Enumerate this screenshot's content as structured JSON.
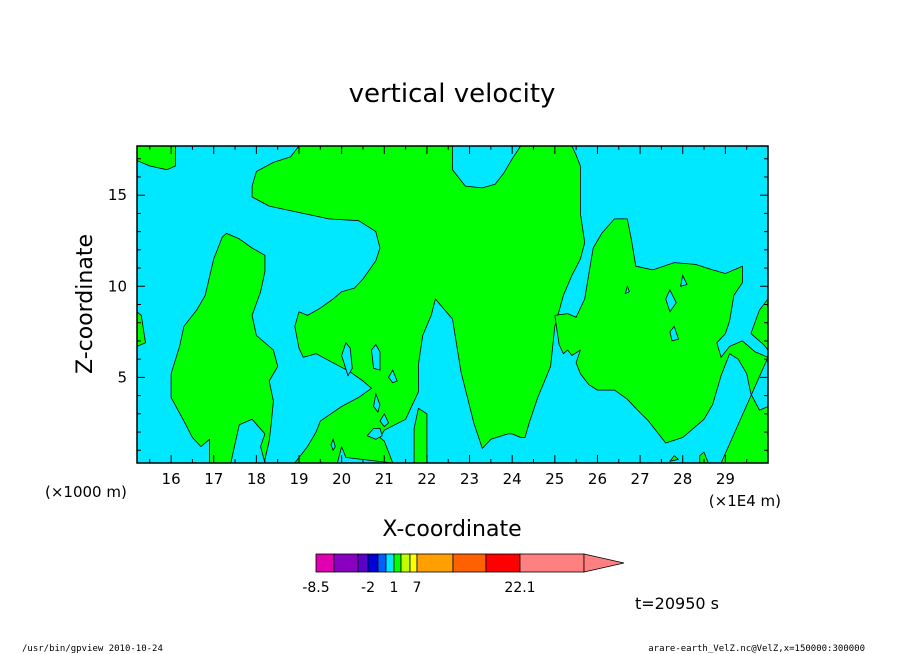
{
  "chart_data": {
    "type": "heatmap",
    "title": "vertical velocity",
    "xlabel": "X-coordinate",
    "ylabel": "Z-coordinate",
    "x_unit": "(×1E4 m)",
    "y_unit": "(×1000 m)",
    "xlim": [
      15.2,
      30.0
    ],
    "ylim": [
      0.3,
      17.7
    ],
    "x_ticks": [
      "16",
      "17",
      "18",
      "19",
      "20",
      "21",
      "22",
      "23",
      "24",
      "25",
      "26",
      "27",
      "28",
      "29"
    ],
    "y_ticks": [
      "5",
      "10",
      "15"
    ],
    "grid": false,
    "levels": [
      {
        "label": "-8.5",
        "color": "#e000b0"
      },
      {
        "label": "",
        "color": "#8a00c0"
      },
      {
        "label": "",
        "color": "#5a00c8"
      },
      {
        "label": "-2",
        "color": "#0000d8"
      },
      {
        "label": "",
        "color": "#0060ff"
      },
      {
        "label": "",
        "color": "#00e8ff"
      },
      {
        "label": "1",
        "color": "#00ff00"
      },
      {
        "label": "",
        "color": "#c0ff00"
      },
      {
        "label": "",
        "color": "#ffff00"
      },
      {
        "label": "7",
        "color": "#ffa000"
      },
      {
        "label": "",
        "color": "#ff6000"
      },
      {
        "label": "",
        "color": "#ff0000"
      },
      {
        "label": "22.1",
        "color": "#ff8080"
      }
    ],
    "field_colors": {
      "background": "#00e8ff",
      "updraft": "#00ff00"
    },
    "updraft_regions": [
      [
        [
          15.2,
          6.7
        ],
        [
          15.4,
          6.9
        ],
        [
          15.3,
          8.4
        ],
        [
          15.2,
          8.6
        ]
      ],
      [
        [
          15.2,
          17.7
        ],
        [
          16.1,
          17.7
        ],
        [
          16.1,
          16.6
        ],
        [
          15.9,
          16.4
        ],
        [
          15.5,
          16.6
        ],
        [
          15.2,
          16.9
        ]
      ],
      [
        [
          16.9,
          0.3
        ],
        [
          17.4,
          0.3
        ],
        [
          17.6,
          2.4
        ],
        [
          17.9,
          2.7
        ],
        [
          18.2,
          1.9
        ],
        [
          18.1,
          1.2
        ],
        [
          18.2,
          0.3
        ],
        [
          18.2,
          0.5
        ],
        [
          18.3,
          1.5
        ],
        [
          18.35,
          2.5
        ],
        [
          18.4,
          3.7
        ],
        [
          18.3,
          4.8
        ],
        [
          18.5,
          5.6
        ],
        [
          18.4,
          6.5
        ],
        [
          18.0,
          7.3
        ],
        [
          17.9,
          8.4
        ],
        [
          18.1,
          9.7
        ],
        [
          18.2,
          10.8
        ],
        [
          18.2,
          11.7
        ],
        [
          17.9,
          12.1
        ],
        [
          17.6,
          12.6
        ],
        [
          17.3,
          12.9
        ],
        [
          17.2,
          12.7
        ],
        [
          17.0,
          11.5
        ],
        [
          16.8,
          9.5
        ],
        [
          16.6,
          8.7
        ],
        [
          16.3,
          7.8
        ],
        [
          16.2,
          6.7
        ],
        [
          16.0,
          5.2
        ],
        [
          16.0,
          3.9
        ],
        [
          16.3,
          2.6
        ],
        [
          16.5,
          1.7
        ],
        [
          16.7,
          1.2
        ],
        [
          16.9,
          1.6
        ]
      ],
      [
        [
          18.9,
          0.3
        ],
        [
          19.9,
          0.3
        ],
        [
          20.0,
          1.2
        ],
        [
          20.1,
          0.6
        ],
        [
          21.2,
          0.3
        ],
        [
          21.0,
          1.5
        ],
        [
          20.9,
          1.7
        ],
        [
          21.0,
          2.1
        ],
        [
          21.5,
          2.7
        ],
        [
          21.8,
          4.2
        ],
        [
          21.8,
          5.7
        ],
        [
          21.9,
          7.3
        ],
        [
          22.1,
          8.4
        ],
        [
          22.2,
          9.3
        ],
        [
          22.6,
          8.2
        ],
        [
          22.8,
          5.3
        ],
        [
          23.1,
          2.5
        ],
        [
          23.3,
          1.1
        ],
        [
          23.5,
          1.6
        ],
        [
          23.9,
          1.9
        ],
        [
          24.0,
          1.9
        ],
        [
          24.2,
          1.7
        ],
        [
          24.3,
          1.7
        ],
        [
          24.4,
          2.5
        ],
        [
          24.6,
          3.9
        ],
        [
          24.9,
          5.6
        ],
        [
          25.0,
          7.8
        ],
        [
          25.2,
          9.5
        ],
        [
          25.4,
          10.6
        ],
        [
          25.6,
          11.5
        ],
        [
          25.7,
          12.4
        ],
        [
          25.6,
          14.0
        ],
        [
          25.6,
          16.6
        ],
        [
          25.5,
          17.2
        ],
        [
          25.4,
          17.7
        ],
        [
          24.2,
          17.7
        ],
        [
          24.0,
          17.0
        ],
        [
          23.8,
          16.2
        ],
        [
          23.6,
          15.6
        ],
        [
          23.3,
          15.4
        ],
        [
          22.9,
          15.5
        ],
        [
          22.6,
          16.4
        ],
        [
          22.6,
          17.3
        ],
        [
          22.6,
          17.7
        ],
        [
          19.0,
          17.7
        ],
        [
          18.8,
          17.1
        ],
        [
          18.4,
          16.8
        ],
        [
          18.0,
          16.3
        ],
        [
          17.9,
          15.5
        ],
        [
          17.9,
          14.9
        ],
        [
          18.3,
          14.4
        ],
        [
          18.9,
          14.1
        ],
        [
          19.7,
          13.7
        ],
        [
          20.4,
          13.6
        ],
        [
          20.8,
          13.0
        ],
        [
          20.9,
          12.1
        ],
        [
          20.8,
          11.4
        ],
        [
          20.5,
          10.4
        ],
        [
          20.3,
          9.9
        ],
        [
          20.0,
          9.7
        ],
        [
          19.8,
          9.3
        ],
        [
          19.5,
          8.8
        ],
        [
          19.2,
          8.4
        ],
        [
          19.0,
          8.6
        ],
        [
          18.9,
          7.8
        ],
        [
          19.0,
          6.6
        ],
        [
          19.1,
          6.1
        ],
        [
          19.4,
          6.3
        ],
        [
          19.8,
          5.8
        ],
        [
          20.2,
          5.3
        ],
        [
          20.5,
          4.8
        ],
        [
          20.7,
          4.4
        ],
        [
          20.4,
          3.9
        ],
        [
          20.0,
          3.4
        ],
        [
          19.5,
          2.6
        ],
        [
          19.4,
          2.0
        ],
        [
          19.3,
          1.6
        ],
        [
          19.2,
          1.2
        ]
      ],
      [
        [
          21.7,
          0.3
        ],
        [
          22.0,
          0.3
        ],
        [
          22.0,
          3.0
        ],
        [
          21.8,
          3.3
        ],
        [
          21.7,
          2.2
        ]
      ],
      [
        [
          27.7,
          0.4
        ],
        [
          27.9,
          0.5
        ],
        [
          27.8,
          0.7
        ]
      ],
      [
        [
          28.4,
          0.3
        ],
        [
          28.6,
          0.3
        ],
        [
          28.5,
          0.9
        ],
        [
          28.4,
          0.7
        ]
      ],
      [
        [
          28.9,
          0.3
        ],
        [
          30.0,
          0.3
        ],
        [
          30.0,
          3.4
        ],
        [
          29.8,
          3.2
        ],
        [
          29.6,
          4.1
        ],
        [
          29.5,
          5.2
        ],
        [
          29.3,
          6.0
        ],
        [
          29.1,
          6.3
        ],
        [
          28.9,
          5.1
        ],
        [
          28.7,
          3.5
        ],
        [
          28.5,
          2.7
        ],
        [
          28.2,
          2.1
        ],
        [
          28.0,
          1.7
        ],
        [
          27.6,
          1.4
        ],
        [
          27.4,
          2.0
        ],
        [
          27.2,
          2.6
        ],
        [
          26.9,
          3.3
        ],
        [
          26.7,
          3.8
        ],
        [
          26.4,
          4.3
        ],
        [
          26.0,
          4.3
        ],
        [
          25.8,
          4.6
        ],
        [
          25.6,
          5.2
        ],
        [
          25.5,
          5.8
        ],
        [
          25.6,
          6.5
        ],
        [
          25.4,
          6.2
        ],
        [
          25.3,
          6.5
        ],
        [
          25.2,
          6.3
        ],
        [
          25.1,
          6.8
        ],
        [
          25.0,
          8.4
        ],
        [
          25.3,
          8.5
        ],
        [
          25.5,
          8.3
        ],
        [
          25.7,
          9.3
        ],
        [
          25.8,
          10.7
        ],
        [
          25.9,
          12.1
        ],
        [
          26.1,
          12.9
        ],
        [
          26.4,
          13.7
        ],
        [
          26.7,
          13.7
        ],
        [
          26.8,
          12.5
        ],
        [
          26.9,
          11.1
        ],
        [
          27.3,
          10.9
        ],
        [
          27.8,
          11.3
        ],
        [
          28.3,
          11.2
        ],
        [
          28.7,
          10.9
        ],
        [
          29.0,
          10.7
        ],
        [
          29.3,
          11.0
        ],
        [
          29.4,
          11.1
        ],
        [
          29.4,
          10.2
        ],
        [
          29.2,
          9.5
        ],
        [
          29.1,
          8.1
        ],
        [
          29.0,
          7.4
        ],
        [
          28.8,
          6.9
        ],
        [
          28.9,
          6.1
        ],
        [
          29.1,
          6.7
        ],
        [
          29.4,
          7.0
        ],
        [
          29.7,
          6.4
        ],
        [
          30.0,
          6.1
        ]
      ],
      [
        [
          29.6,
          7.4
        ],
        [
          29.8,
          8.7
        ],
        [
          30.0,
          9.3
        ],
        [
          30.0,
          6.5
        ],
        [
          29.9,
          6.8
        ]
      ]
    ],
    "downdraft_holes": [
      [
        [
          20.1,
          6.9
        ],
        [
          20.2,
          6.6
        ],
        [
          20.25,
          5.5
        ],
        [
          20.15,
          5.1
        ],
        [
          20.0,
          6.2
        ]
      ],
      [
        [
          20.8,
          6.8
        ],
        [
          20.9,
          6.4
        ],
        [
          20.9,
          5.4
        ],
        [
          20.75,
          5.5
        ],
        [
          20.7,
          6.5
        ]
      ],
      [
        [
          21.2,
          5.4
        ],
        [
          21.3,
          4.8
        ],
        [
          21.2,
          4.7
        ],
        [
          21.1,
          5.0
        ]
      ],
      [
        [
          20.8,
          4.1
        ],
        [
          20.9,
          3.5
        ],
        [
          20.85,
          3.1
        ],
        [
          20.75,
          3.4
        ]
      ],
      [
        [
          20.75,
          2.2
        ],
        [
          20.9,
          2.2
        ],
        [
          20.95,
          1.8
        ],
        [
          20.8,
          1.6
        ],
        [
          20.6,
          1.8
        ]
      ],
      [
        [
          21.0,
          3.0
        ],
        [
          21.1,
          2.5
        ],
        [
          21.0,
          2.3
        ],
        [
          20.9,
          2.6
        ]
      ],
      [
        [
          19.8,
          1.6
        ],
        [
          19.85,
          1.2
        ],
        [
          19.8,
          1.0
        ],
        [
          19.75,
          1.3
        ]
      ],
      [
        [
          27.7,
          9.8
        ],
        [
          27.85,
          9.1
        ],
        [
          27.7,
          8.6
        ],
        [
          27.6,
          9.3
        ]
      ],
      [
        [
          27.8,
          7.8
        ],
        [
          27.9,
          7.1
        ],
        [
          27.75,
          7.0
        ],
        [
          27.7,
          7.5
        ]
      ],
      [
        [
          28.0,
          10.6
        ],
        [
          28.1,
          10.1
        ],
        [
          27.95,
          10.0
        ]
      ],
      [
        [
          26.7,
          10.0
        ],
        [
          26.75,
          9.7
        ],
        [
          26.65,
          9.6
        ]
      ]
    ],
    "time_label": "t=20950 s",
    "footer_left": "/usr/bin/gpview  2010-10-24",
    "footer_right": "arare-earth_VelZ.nc@VelZ,x=150000:300000"
  }
}
